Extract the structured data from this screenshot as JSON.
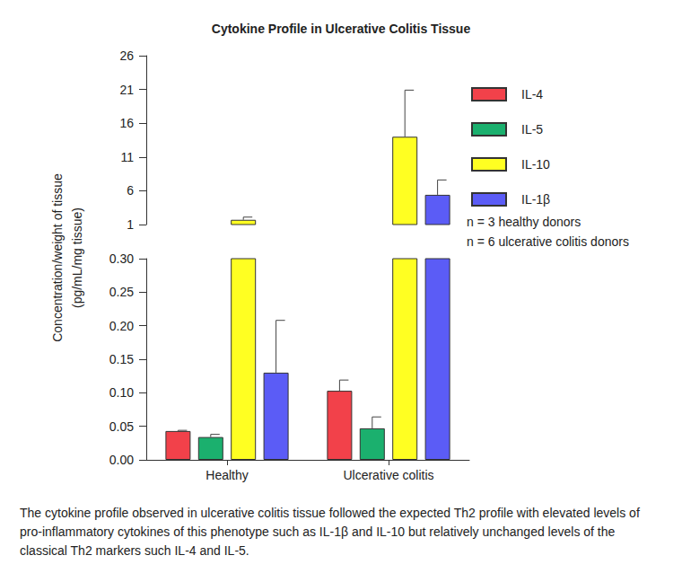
{
  "chart_data": {
    "type": "bar",
    "title": "Cytokine Profile in Ulcerative Colitis Tissue",
    "y_label": "Concentration/weight of tissue\n(pg/mL/mg tissue)",
    "categories": [
      "Healthy",
      "Ulcerative colitis"
    ],
    "series": [
      {
        "name": "IL-4",
        "color": "#f2414a",
        "values": [
          0.043,
          0.103
        ],
        "errors": [
          0.001,
          0.016
        ]
      },
      {
        "name": "IL-5",
        "color": "#1bb06e",
        "values": [
          0.034,
          0.047
        ],
        "errors": [
          0.004,
          0.017
        ]
      },
      {
        "name": "IL-10",
        "color": "#ffff22",
        "values": [
          1.7,
          14.0
        ],
        "errors": [
          0.4,
          6.9
        ]
      },
      {
        "name": "IL-1β",
        "color": "#5b5cf6",
        "values": [
          0.13,
          5.4
        ],
        "errors": [
          0.078,
          2.2
        ]
      }
    ],
    "y_segments": [
      {
        "ylim": [
          0,
          0.3
        ],
        "yticks": [
          {
            "value": 0,
            "label": "0.00"
          },
          {
            "value": 0.05,
            "label": "0.05"
          },
          {
            "value": 0.1,
            "label": "0.10"
          },
          {
            "value": 0.15,
            "label": "0.15"
          },
          {
            "value": 0.2,
            "label": "0.20"
          },
          {
            "value": 0.25,
            "label": "0.25"
          },
          {
            "value": 0.3,
            "label": "0.30"
          }
        ]
      },
      {
        "ylim": [
          1,
          26
        ],
        "yticks": [
          1,
          6,
          11,
          16,
          21,
          26
        ]
      }
    ],
    "legend": "right",
    "annotations": [
      "n = 3 healthy donors",
      "n = 6 ulcerative colitis donors"
    ],
    "caption": "The cytokine profile observed in ulcerative colitis tissue followed the expected Th2 profile with elevated levels of pro-inflammatory cytokines of this phenotype such as IL-1β and IL-10 but relatively unchanged levels of the classical Th2 markers such IL-4 and IL-5."
  }
}
